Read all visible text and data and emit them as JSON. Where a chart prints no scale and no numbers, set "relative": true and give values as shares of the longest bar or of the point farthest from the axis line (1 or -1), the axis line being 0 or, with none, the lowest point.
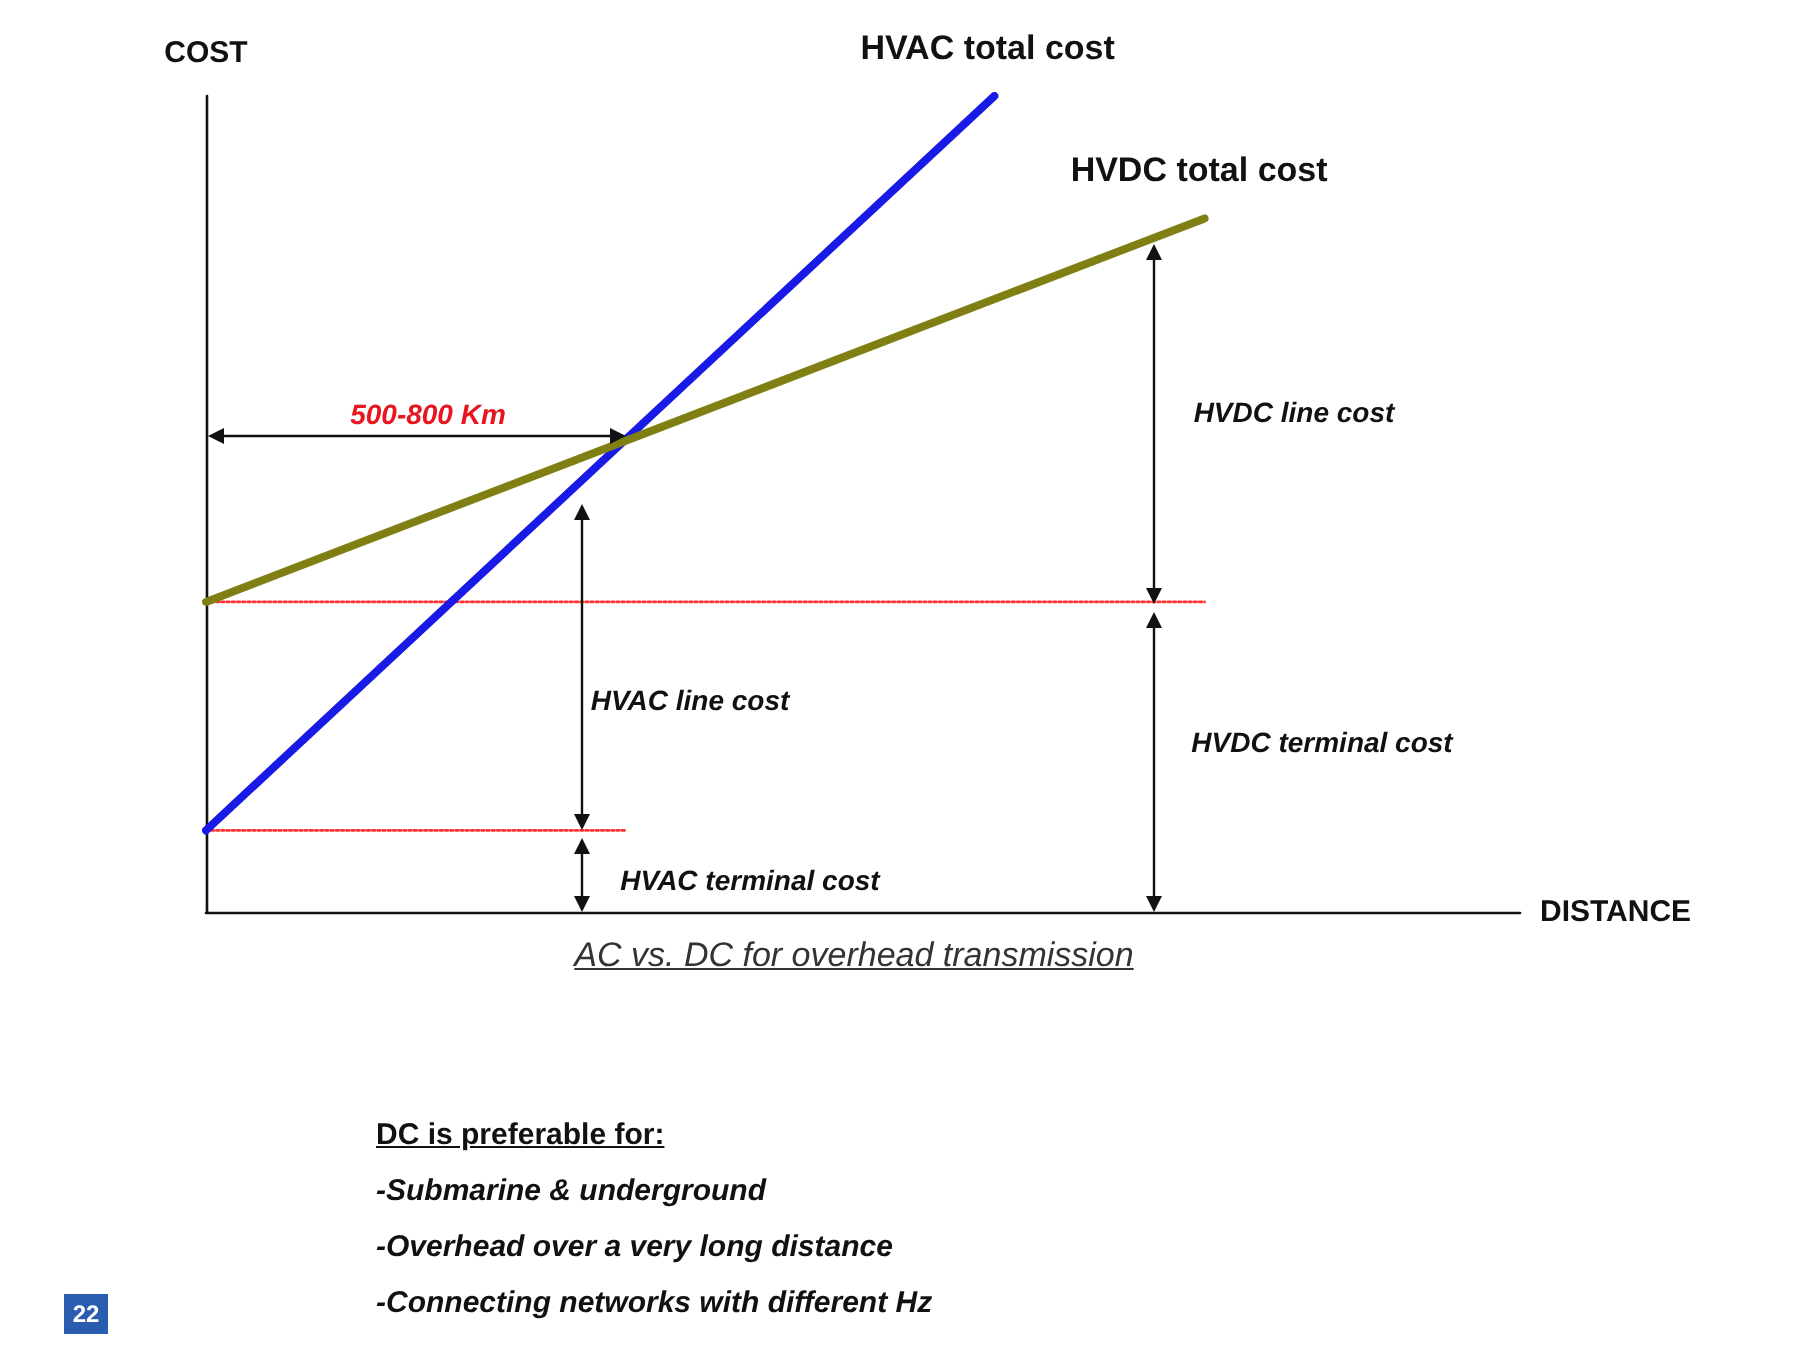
{
  "chart_data": {
    "type": "line",
    "relative": true,
    "xlabel": "DISTANCE",
    "ylabel": "COST",
    "grid": false,
    "legend": false,
    "categories": [
      null,
      null,
      null,
      null,
      null,
      null,
      null,
      null,
      null,
      null,
      null,
      null,
      null,
      null,
      null,
      null,
      null,
      null,
      null,
      null,
      null,
      null,
      null,
      null,
      null,
      null
    ],
    "series": [
      {
        "name": "HVAC total cost",
        "color": "#1a1ae6",
        "values": [
          0.1,
          null,
          null,
          null,
          null,
          null,
          null,
          null,
          null,
          null,
          null,
          null,
          null,
          null,
          null,
          1,
          null,
          null,
          null,
          null,
          null,
          null,
          null,
          null,
          null,
          null
        ],
        "marker": "none",
        "line_style": "solid"
      },
      {
        "name": "HVDC total cost",
        "color": "#7f7f14",
        "values": [
          0.38,
          null,
          null,
          null,
          null,
          null,
          null,
          null,
          null,
          null,
          null,
          null,
          null,
          null,
          null,
          null,
          null,
          null,
          null,
          0.85,
          null,
          null,
          null,
          null,
          null,
          null
        ],
        "marker": "none",
        "line_style": "solid"
      },
      {
        "color": "#ff3333",
        "values": [
          0.38,
          null,
          null,
          null,
          null,
          null,
          null,
          null,
          null,
          null,
          null,
          null,
          null,
          null,
          null,
          null,
          null,
          null,
          null,
          0.38,
          null,
          null,
          null,
          null,
          null,
          null
        ],
        "marker": "none",
        "line_style": "dotted"
      },
      {
        "color": "#ff3333",
        "values": [
          0.1,
          null,
          null,
          null,
          null,
          null,
          null,
          null,
          0.1,
          null,
          null,
          null,
          null,
          null,
          null,
          null,
          null,
          null,
          null,
          null,
          null,
          null,
          null,
          null,
          null,
          null
        ],
        "marker": "none",
        "line_style": "dotted"
      }
    ],
    "annotations": [
      "500-800 Km",
      "HVDC line cost",
      "HVDC terminal cost",
      "HVAC line cost",
      "HVAC terminal cost",
      "AC vs. DC for overhead transmission",
      "DC is preferable for:",
      "-Submarine & underground",
      "-Overhead over a very long distance",
      "-Connecting networks with different Hz",
      "22"
    ]
  }
}
